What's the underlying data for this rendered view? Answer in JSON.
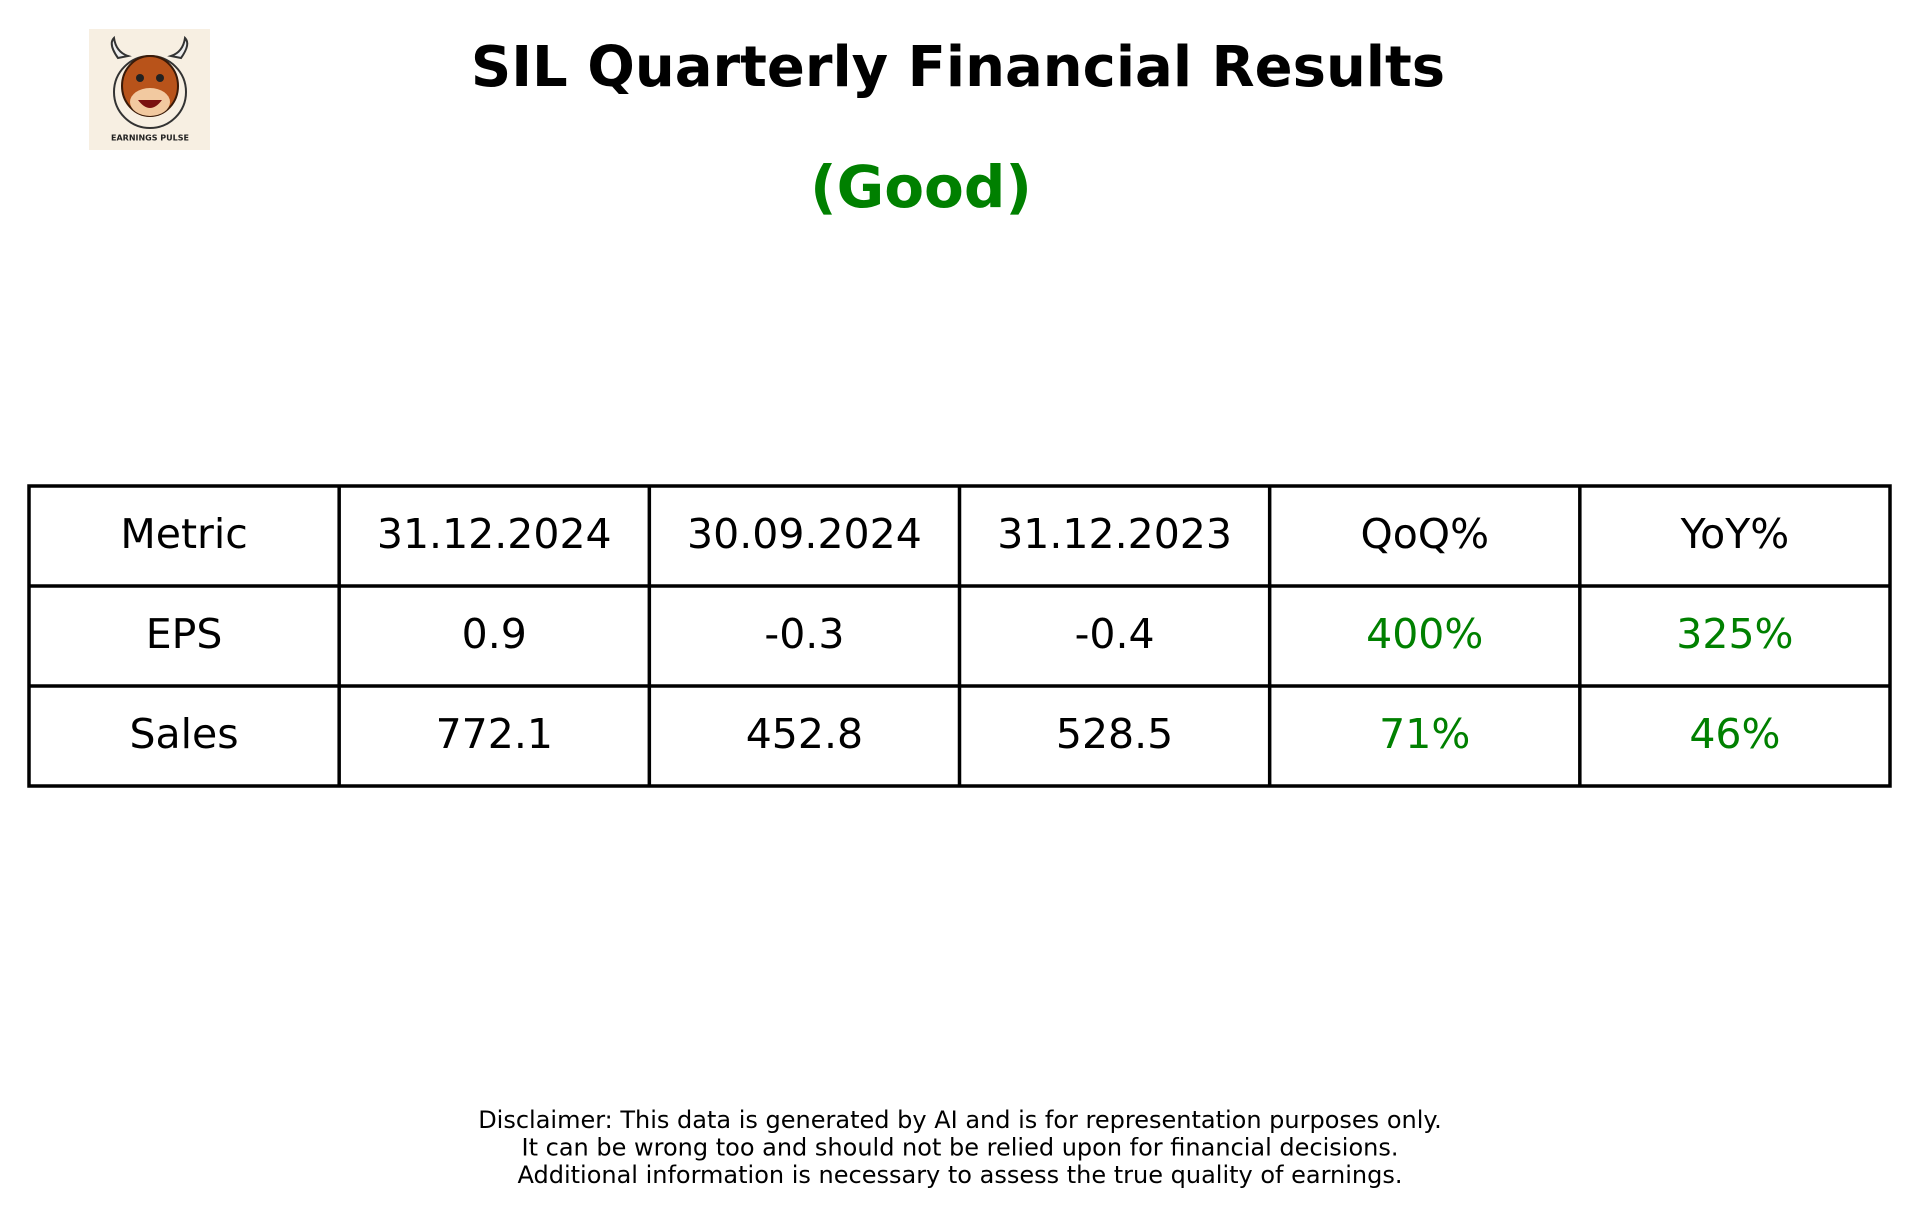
{
  "header": {
    "title": "SIL Quarterly Financial Results",
    "rating": "(Good)",
    "logo_text": "EARNINGS PULSE"
  },
  "table": {
    "columns": [
      "Metric",
      "31.12.2024",
      "30.09.2024",
      "31.12.2023",
      "QoQ%",
      "YoY%"
    ],
    "rows": [
      [
        "EPS",
        "0.9",
        "-0.3",
        "-0.4",
        "400%",
        "325%"
      ],
      [
        "Sales",
        "772.1",
        "452.8",
        "528.5",
        "71%",
        "46%"
      ]
    ]
  },
  "disclaimer": [
    "Disclaimer: This data is generated by AI and is for representation purposes only.",
    "It can be wrong too and should not be relied upon for financial decisions.",
    "Additional information is necessary to assess the true quality of earnings."
  ]
}
